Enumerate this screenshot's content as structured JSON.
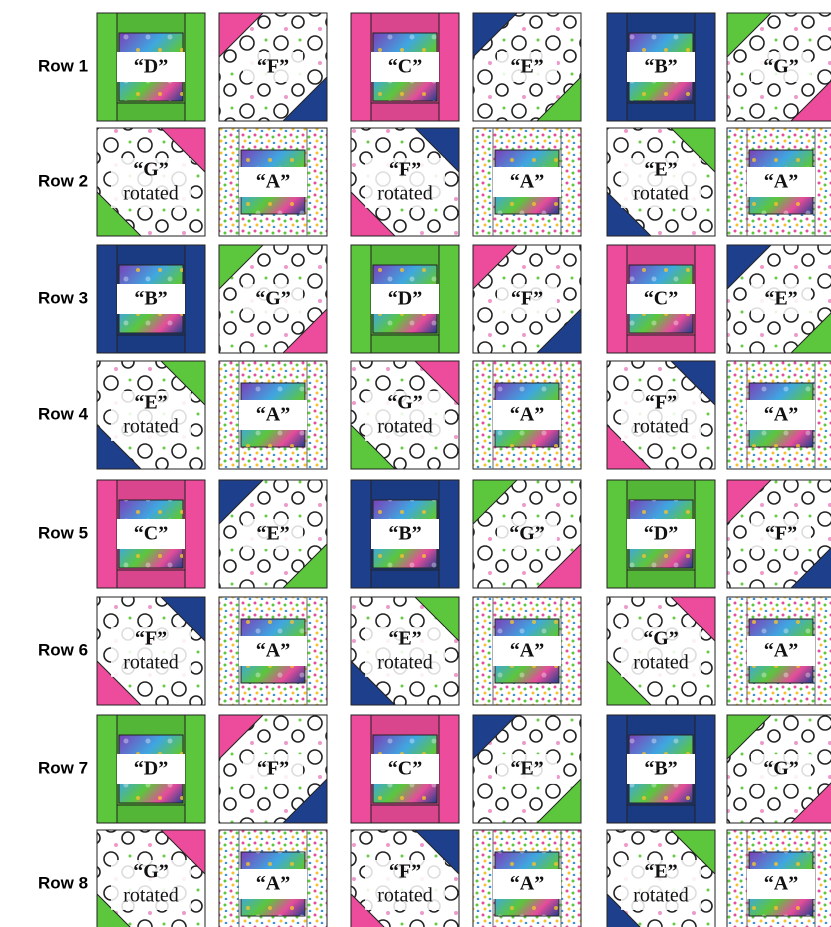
{
  "rows": [
    {
      "label": "Row 1",
      "blocks": [
        {
          "lines": [
            "“D”"
          ]
        },
        {
          "lines": [
            "“F”"
          ]
        },
        {
          "lines": [
            "“C”"
          ]
        },
        {
          "lines": [
            "“E”"
          ]
        },
        {
          "lines": [
            "“B”"
          ]
        },
        {
          "lines": [
            "“G”"
          ]
        }
      ]
    },
    {
      "label": "Row 2",
      "blocks": [
        {
          "lines": [
            "“G”",
            "rotated"
          ]
        },
        {
          "lines": [
            "“A”"
          ]
        },
        {
          "lines": [
            "“F”",
            "rotated"
          ]
        },
        {
          "lines": [
            "“A”"
          ]
        },
        {
          "lines": [
            "“E”",
            "rotated"
          ]
        },
        {
          "lines": [
            "“A”"
          ]
        }
      ]
    },
    {
      "label": "Row 3",
      "blocks": [
        {
          "lines": [
            "“B”"
          ]
        },
        {
          "lines": [
            "“G”"
          ]
        },
        {
          "lines": [
            "“D”"
          ]
        },
        {
          "lines": [
            "“F”"
          ]
        },
        {
          "lines": [
            "“C”"
          ]
        },
        {
          "lines": [
            "“E”"
          ]
        }
      ]
    },
    {
      "label": "Row 4",
      "blocks": [
        {
          "lines": [
            "“E”",
            "rotated"
          ]
        },
        {
          "lines": [
            "“A”"
          ]
        },
        {
          "lines": [
            "“G”",
            "rotated"
          ]
        },
        {
          "lines": [
            "“A”"
          ]
        },
        {
          "lines": [
            "“F”",
            "rotated"
          ]
        },
        {
          "lines": [
            "“A”"
          ]
        }
      ]
    },
    {
      "label": "Row 5",
      "blocks": [
        {
          "lines": [
            "“C”"
          ]
        },
        {
          "lines": [
            "“E”"
          ]
        },
        {
          "lines": [
            "“B”"
          ]
        },
        {
          "lines": [
            "“G”"
          ]
        },
        {
          "lines": [
            "“D”"
          ]
        },
        {
          "lines": [
            "“F”"
          ]
        }
      ]
    },
    {
      "label": "Row 6",
      "blocks": [
        {
          "lines": [
            "“F”",
            "rotated"
          ]
        },
        {
          "lines": [
            "“A”"
          ]
        },
        {
          "lines": [
            "“E”",
            "rotated"
          ]
        },
        {
          "lines": [
            "“A”"
          ]
        },
        {
          "lines": [
            "“G”",
            "rotated"
          ]
        },
        {
          "lines": [
            "“A”"
          ]
        }
      ]
    },
    {
      "label": "Row 7",
      "blocks": [
        {
          "lines": [
            "“D”"
          ]
        },
        {
          "lines": [
            "“F”"
          ]
        },
        {
          "lines": [
            "“C”"
          ]
        },
        {
          "lines": [
            "“E”"
          ]
        },
        {
          "lines": [
            "“B”"
          ]
        },
        {
          "lines": [
            "“G”"
          ]
        }
      ]
    },
    {
      "label": "Row 8",
      "blocks": [
        {
          "lines": [
            "“G”",
            "rotated"
          ]
        },
        {
          "lines": [
            "“A”"
          ]
        },
        {
          "lines": [
            "“F”",
            "rotated"
          ]
        },
        {
          "lines": [
            "“A”"
          ]
        },
        {
          "lines": [
            "“E”",
            "rotated"
          ]
        },
        {
          "lines": [
            "“A”"
          ]
        }
      ]
    }
  ]
}
